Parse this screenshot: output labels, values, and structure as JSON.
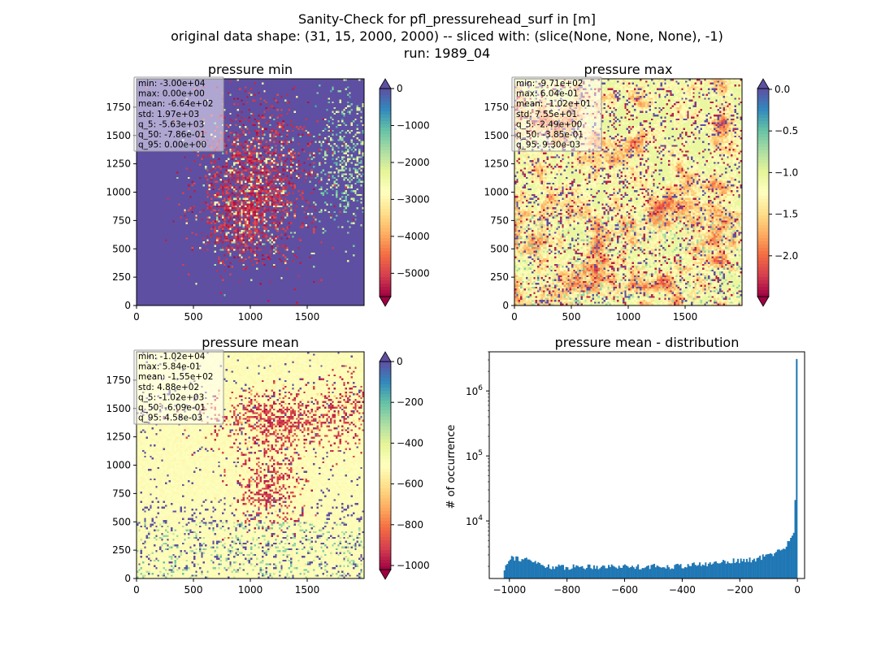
{
  "figure": {
    "suptitle_lines": [
      "Sanity-Check for pfl_pressurehead_surf in [m]",
      "original data shape: (31, 15, 2000, 2000) -- sliced with: (slice(None, None, None), -1)",
      "run: 1989_04"
    ]
  },
  "colors": {
    "spectral": [
      "#9e0142",
      "#d53e4f",
      "#f46d43",
      "#fdae61",
      "#fee08b",
      "#ffffbf",
      "#e6f598",
      "#abdda4",
      "#66c2a5",
      "#3288bd",
      "#5e4fa2"
    ],
    "hist_bar": "#1f77b4"
  },
  "chart_data": [
    {
      "type": "heatmap",
      "title": "pressure min",
      "x_ticks": [
        0,
        500,
        1000,
        1500
      ],
      "y_ticks": [
        0,
        250,
        500,
        750,
        1000,
        1250,
        1500,
        1750
      ],
      "xlim": [
        0,
        2000
      ],
      "ylim": [
        0,
        2000
      ],
      "stats": [
        "min: -3.00e+04",
        "max: 0.00e+00",
        "mean: -6.64e+02",
        "std: 1.97e+03",
        "q_5: -5.63e+03",
        "q_50: -7.86e-01",
        "q_95: 0.00e+00"
      ],
      "colorbar": {
        "vmin": -5630,
        "vmax": 0,
        "ticks": [
          0,
          -1000,
          -2000,
          -3000,
          -4000,
          -5000
        ],
        "tick_labels": [
          "0",
          "−1000",
          "−2000",
          "−3000",
          "−4000",
          "−5000"
        ],
        "extend": "both",
        "top_extend_color": "#5e4fa2",
        "bottom_extend_color": "#9e0142"
      }
    },
    {
      "type": "heatmap",
      "title": "pressure max",
      "x_ticks": [
        0,
        500,
        1000,
        1500
      ],
      "y_ticks": [
        0,
        250,
        500,
        750,
        1000,
        1250,
        1500,
        1750
      ],
      "xlim": [
        0,
        2000
      ],
      "ylim": [
        0,
        2000
      ],
      "stats": [
        "min: -9.71e+02",
        "max: 6.04e-01",
        "mean: -1.02e+01",
        "std: 7.55e+01",
        "q_5: -2.49e+00",
        "q_50: -3.85e-01",
        "q_95: 9.30e-03"
      ],
      "colorbar": {
        "vmin": -2.49,
        "vmax": 0.0093,
        "ticks": [
          0.0,
          -0.5,
          -1.0,
          -1.5,
          -2.0
        ],
        "tick_labels": [
          "0.0",
          "−0.5",
          "−1.0",
          "−1.5",
          "−2.0"
        ],
        "extend": "both",
        "top_extend_color": "#5e4fa2",
        "bottom_extend_color": "#9e0142"
      }
    },
    {
      "type": "heatmap",
      "title": "pressure mean",
      "x_ticks": [
        0,
        500,
        1000,
        1500
      ],
      "y_ticks": [
        0,
        250,
        500,
        750,
        1000,
        1250,
        1500,
        1750
      ],
      "xlim": [
        0,
        2000
      ],
      "ylim": [
        0,
        2000
      ],
      "stats": [
        "min: -1.02e+04",
        "max: 5.84e-01",
        "mean: -1.55e+02",
        "std: 4.88e+02",
        "q_5: -1.02e+03",
        "q_50: -6.09e-01",
        "q_95: 4.58e-03"
      ],
      "colorbar": {
        "vmin": -1020,
        "vmax": 0.00458,
        "ticks": [
          0,
          -200,
          -400,
          -600,
          -800,
          -1000
        ],
        "tick_labels": [
          "0",
          "−200",
          "−400",
          "−600",
          "−800",
          "−1000"
        ],
        "extend": "both",
        "top_extend_color": "#5e4fa2",
        "bottom_extend_color": "#9e0142"
      }
    },
    {
      "type": "bar",
      "title": "pressure mean - distribution",
      "ylabel": "# of occurrence",
      "xlabel": "",
      "y_scale": "log",
      "xlim": [
        -1070,
        25
      ],
      "ylim": [
        1300,
        4000000
      ],
      "x_ticks": [
        -1000,
        -800,
        -600,
        -400,
        -200,
        0
      ],
      "x_tick_labels": [
        "−1000",
        "−800",
        "−600",
        "−400",
        "−200",
        "0"
      ],
      "y_ticks": [
        10000,
        100000,
        1000000
      ],
      "y_tick_labels": [
        "10^4",
        "10^5",
        "10^6"
      ],
      "bin_range": [
        -1020,
        0
      ],
      "bins": 200,
      "trend_points": [
        [
          -1020,
          1700
        ],
        [
          -1010,
          2200
        ],
        [
          -1000,
          2800
        ],
        [
          -990,
          2800
        ],
        [
          -980,
          2700
        ],
        [
          -960,
          2600
        ],
        [
          -940,
          2500
        ],
        [
          -920,
          2400
        ],
        [
          -900,
          2200
        ],
        [
          -880,
          2050
        ],
        [
          -860,
          2000
        ],
        [
          -840,
          1950
        ],
        [
          -800,
          1950
        ],
        [
          -760,
          1980
        ],
        [
          -700,
          2000
        ],
        [
          -640,
          2000
        ],
        [
          -600,
          2000
        ],
        [
          -560,
          1980
        ],
        [
          -520,
          2000
        ],
        [
          -480,
          2000
        ],
        [
          -440,
          2000
        ],
        [
          -400,
          2050
        ],
        [
          -360,
          2100
        ],
        [
          -320,
          2150
        ],
        [
          -300,
          2200
        ],
        [
          -280,
          2300
        ],
        [
          -260,
          2400
        ],
        [
          -240,
          2400
        ],
        [
          -200,
          2450
        ],
        [
          -160,
          2500
        ],
        [
          -130,
          2700
        ],
        [
          -100,
          3000
        ],
        [
          -80,
          3200
        ],
        [
          -60,
          3500
        ],
        [
          -40,
          4100
        ],
        [
          -25,
          5200
        ],
        [
          -15,
          6500
        ],
        [
          -10,
          8000
        ],
        [
          -5,
          21000
        ],
        [
          0,
          3100000
        ]
      ]
    }
  ]
}
